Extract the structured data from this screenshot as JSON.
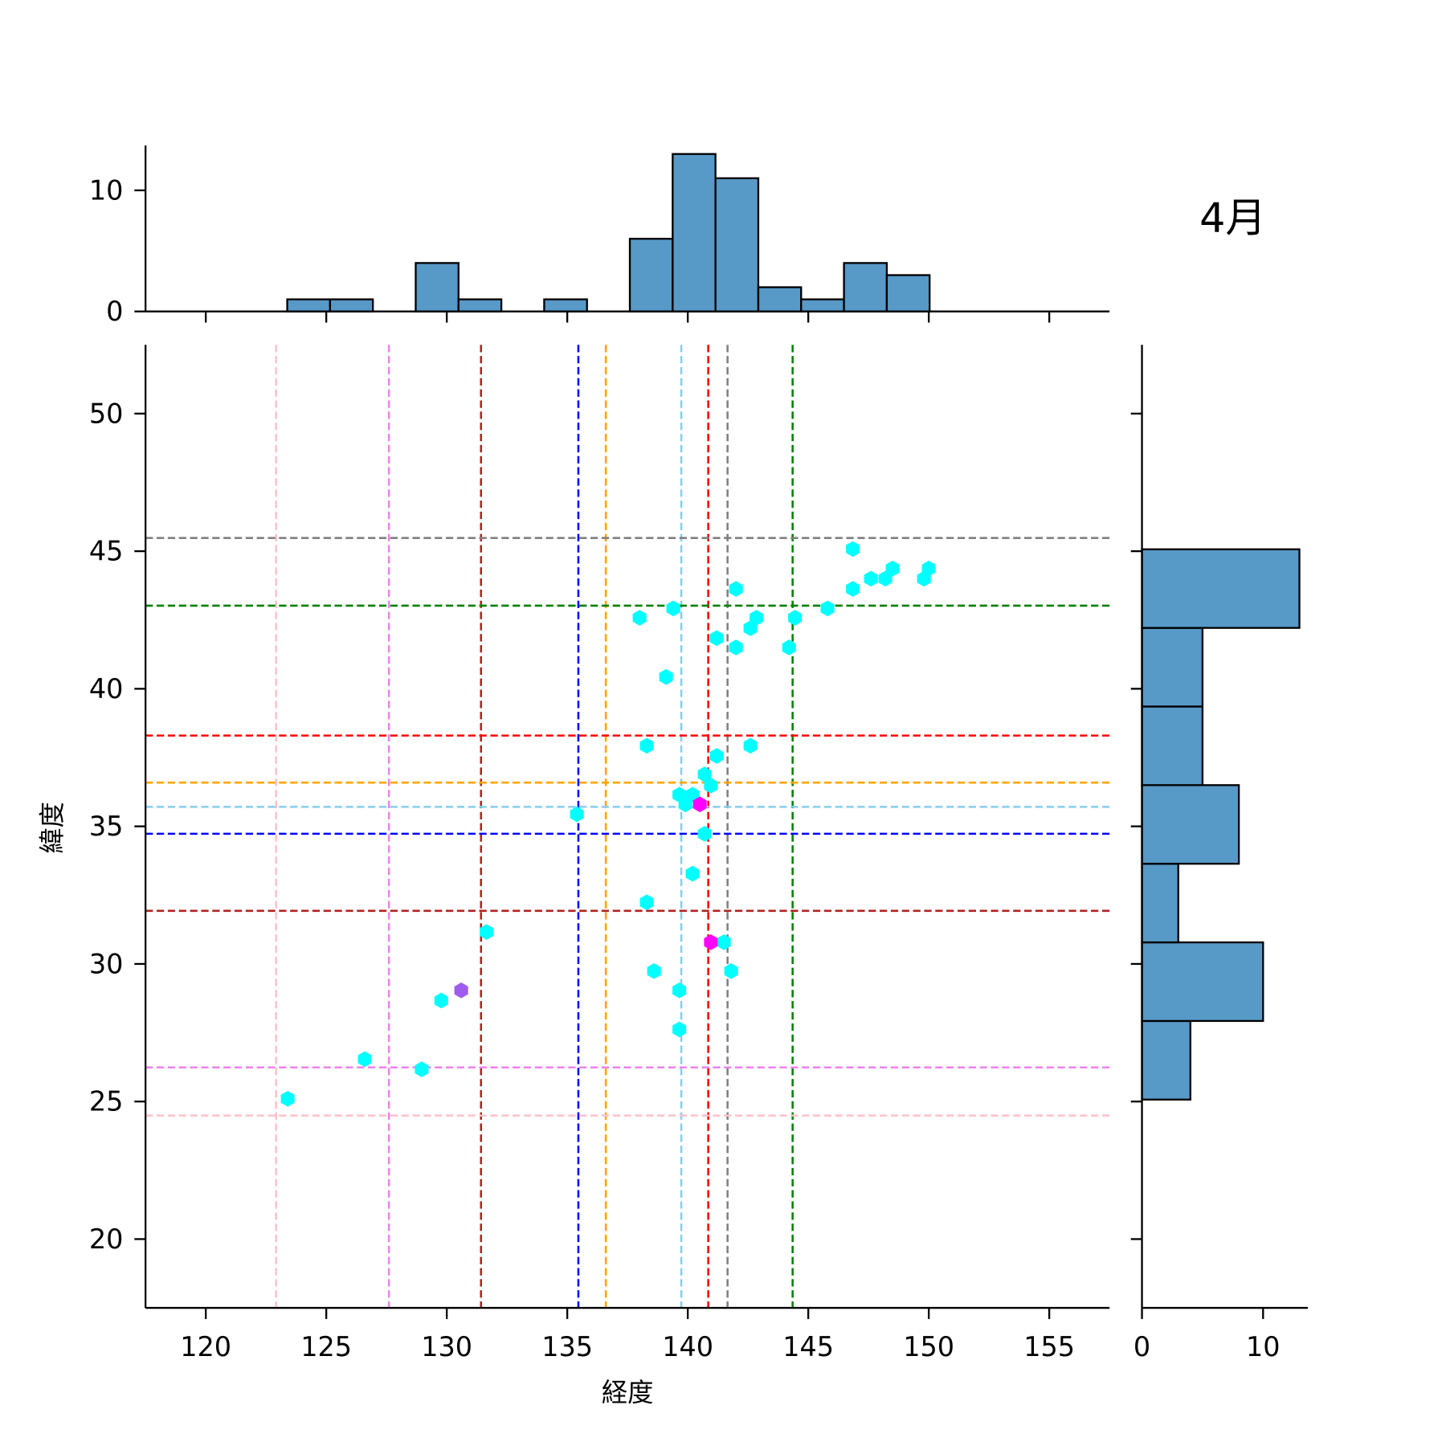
{
  "chart_data": {
    "type": "scatter",
    "title": "4月",
    "xlabel": "経度",
    "ylabel": "緯度",
    "xlim": [
      117.5,
      157.5
    ],
    "ylim": [
      17.5,
      52.5
    ],
    "xticks": [
      120,
      125,
      130,
      135,
      140,
      145,
      150,
      155
    ],
    "yticks": [
      20,
      25,
      30,
      35,
      40,
      45,
      50
    ],
    "grid": false,
    "marker": "hexagon",
    "points": [
      {
        "x": 146.85,
        "y": 45.08,
        "color": "#00ffff"
      },
      {
        "x": 146.85,
        "y": 43.63,
        "color": "#00ffff"
      },
      {
        "x": 147.6,
        "y": 44.0,
        "color": "#00ffff"
      },
      {
        "x": 148.2,
        "y": 44.0,
        "color": "#00ffff"
      },
      {
        "x": 148.5,
        "y": 44.37,
        "color": "#00ffff"
      },
      {
        "x": 149.8,
        "y": 44.0,
        "color": "#00ffff"
      },
      {
        "x": 150.0,
        "y": 44.37,
        "color": "#00ffff"
      },
      {
        "x": 142.0,
        "y": 43.63,
        "color": "#00ffff"
      },
      {
        "x": 139.4,
        "y": 42.92,
        "color": "#00ffff"
      },
      {
        "x": 138.0,
        "y": 42.58,
        "color": "#00ffff"
      },
      {
        "x": 145.8,
        "y": 42.92,
        "color": "#00ffff"
      },
      {
        "x": 142.85,
        "y": 42.58,
        "color": "#00ffff"
      },
      {
        "x": 144.45,
        "y": 42.58,
        "color": "#00ffff"
      },
      {
        "x": 142.6,
        "y": 42.2,
        "color": "#00ffff"
      },
      {
        "x": 141.2,
        "y": 41.84,
        "color": "#00ffff"
      },
      {
        "x": 142.0,
        "y": 41.5,
        "color": "#00ffff"
      },
      {
        "x": 144.2,
        "y": 41.5,
        "color": "#00ffff"
      },
      {
        "x": 139.1,
        "y": 40.43,
        "color": "#00ffff"
      },
      {
        "x": 138.3,
        "y": 37.93,
        "color": "#00ffff"
      },
      {
        "x": 142.6,
        "y": 37.93,
        "color": "#00ffff"
      },
      {
        "x": 141.2,
        "y": 37.56,
        "color": "#00ffff"
      },
      {
        "x": 140.7,
        "y": 36.89,
        "color": "#00ffff"
      },
      {
        "x": 140.96,
        "y": 36.48,
        "color": "#00ffff"
      },
      {
        "x": 139.65,
        "y": 36.15,
        "color": "#00ffff"
      },
      {
        "x": 140.2,
        "y": 36.15,
        "color": "#00ffff"
      },
      {
        "x": 139.9,
        "y": 35.8,
        "color": "#00ffff"
      },
      {
        "x": 140.5,
        "y": 35.8,
        "color": "#ff00ff"
      },
      {
        "x": 135.4,
        "y": 35.44,
        "color": "#00ffff"
      },
      {
        "x": 140.7,
        "y": 34.73,
        "color": "#00ffff"
      },
      {
        "x": 140.2,
        "y": 33.28,
        "color": "#00ffff"
      },
      {
        "x": 138.3,
        "y": 32.24,
        "color": "#00ffff"
      },
      {
        "x": 131.65,
        "y": 31.16,
        "color": "#00ffff"
      },
      {
        "x": 141.5,
        "y": 30.79,
        "color": "#00ffff"
      },
      {
        "x": 140.96,
        "y": 30.79,
        "color": "#ff00ff"
      },
      {
        "x": 138.6,
        "y": 29.74,
        "color": "#00ffff"
      },
      {
        "x": 141.8,
        "y": 29.74,
        "color": "#00ffff"
      },
      {
        "x": 130.6,
        "y": 29.04,
        "color": "#a05cf0"
      },
      {
        "x": 139.65,
        "y": 29.04,
        "color": "#00ffff"
      },
      {
        "x": 129.77,
        "y": 28.67,
        "color": "#00ffff"
      },
      {
        "x": 139.65,
        "y": 27.62,
        "color": "#00ffff"
      },
      {
        "x": 126.6,
        "y": 26.54,
        "color": "#00ffff"
      },
      {
        "x": 128.96,
        "y": 26.17,
        "color": "#00ffff"
      },
      {
        "x": 123.4,
        "y": 25.1,
        "color": "#00ffff"
      }
    ],
    "vlines": [
      {
        "x": 122.92,
        "color": "#ffc0cb"
      },
      {
        "x": 127.6,
        "color": "#ee82ee"
      },
      {
        "x": 131.42,
        "color": "#b22222"
      },
      {
        "x": 135.46,
        "color": "#0000ff"
      },
      {
        "x": 136.6,
        "color": "#ffa500"
      },
      {
        "x": 139.73,
        "color": "#87ceeb"
      },
      {
        "x": 140.85,
        "color": "#ff0000"
      },
      {
        "x": 141.65,
        "color": "#808080"
      },
      {
        "x": 144.35,
        "color": "#008000"
      }
    ],
    "hlines": [
      {
        "y": 45.48,
        "color": "#808080"
      },
      {
        "y": 43.02,
        "color": "#008000"
      },
      {
        "y": 38.3,
        "color": "#ff0000"
      },
      {
        "y": 36.59,
        "color": "#ffa500"
      },
      {
        "y": 35.71,
        "color": "#87ceeb"
      },
      {
        "y": 34.73,
        "color": "#0000ff"
      },
      {
        "y": 31.93,
        "color": "#b22222"
      },
      {
        "y": 26.24,
        "color": "#ee82ee"
      },
      {
        "y": 24.49,
        "color": "#ffc0cb"
      }
    ],
    "hist_x": {
      "bin_start": 123.38,
      "bin_width": 1.777,
      "counts": [
        1,
        1,
        0,
        4,
        1,
        0,
        1,
        0,
        6,
        13,
        11,
        2,
        1,
        4,
        3
      ],
      "yticks": [
        0,
        10
      ],
      "ylim": [
        0,
        13.7
      ],
      "color": "#5799c7"
    },
    "hist_y": {
      "bin_start": 25.07,
      "bin_width": 2.857,
      "counts": [
        4,
        10,
        3,
        8,
        5,
        5,
        13
      ],
      "xticks": [
        0,
        10
      ],
      "xlim": [
        0,
        13.7
      ],
      "color": "#5799c7"
    }
  }
}
